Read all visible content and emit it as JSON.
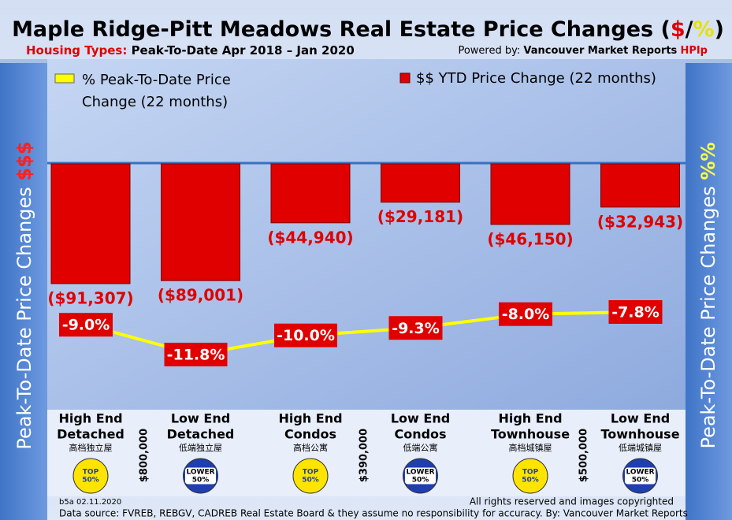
{
  "chart_data": {
    "type": "bar",
    "title": [
      "Maple Ridge-Pitt Meadows Real Estate Price Changes (",
      "$",
      "/",
      "%",
      ")"
    ],
    "subtitle": [
      "Housing Types:",
      "Peak-To-Date Apr 2018 – Jan 2020"
    ],
    "credit": [
      "Powered by:",
      "Vancouver Market Reports",
      "HPIp"
    ],
    "left_axis_label": [
      "Peak-To-Date Price Changes",
      "$$$"
    ],
    "right_axis_label": [
      "Peak-To-Date  Price  Changes",
      "%%"
    ],
    "categories": [
      [
        "High End",
        "Detached"
      ],
      [
        "Low End",
        "Detached"
      ],
      [
        "High End",
        "Condos"
      ],
      [
        "Low End",
        "Condos"
      ],
      [
        "High End",
        "Townhouse"
      ],
      [
        "Low End",
        "Townhouse"
      ]
    ],
    "categories_zh": [
      "高档独立屋",
      "低端独立屋",
      "高档公寓",
      "低端公寓",
      "高档城镇屋",
      "低端城镇屋"
    ],
    "price_dividers": [
      "$800,000",
      "$390,000",
      "$500,000"
    ],
    "tiers": [
      [
        "TOP",
        "50%"
      ],
      [
        "LOWER",
        "50%"
      ],
      [
        "TOP",
        "50%"
      ],
      [
        "LOWER",
        "50%"
      ],
      [
        "TOP",
        "50%"
      ],
      [
        "LOWER",
        "50%"
      ]
    ],
    "series": [
      {
        "name": "$$ YTD Price Change (22 months)",
        "type": "bar",
        "color": "#e00000",
        "values": [
          -91307,
          -89001,
          -44940,
          -29181,
          -46150,
          -32943
        ],
        "value_labels": [
          "($91,307)",
          "($89,001)",
          "($44,940)",
          "($29,181)",
          "($46,150)",
          "($32,943)"
        ]
      },
      {
        "name": "% Peak-To-Date Price Change (22 months)",
        "type": "line",
        "color": "#ffff00",
        "values": [
          -9.0,
          -11.8,
          -10.0,
          -9.3,
          -8.0,
          -7.8
        ],
        "value_labels": [
          "-9.0%",
          "-11.8%",
          "-10.0%",
          "-9.3%",
          "-8.0%",
          "-7.8%"
        ]
      }
    ],
    "footer": [
      "b5a 02.11.2020",
      "All rights reserved and  images copyrighted",
      "Data source: FVREB, REBGV, CADREB Real Estate Board & they assume no responsibility for accuracy. By: Vancouver Market Reports"
    ]
  }
}
